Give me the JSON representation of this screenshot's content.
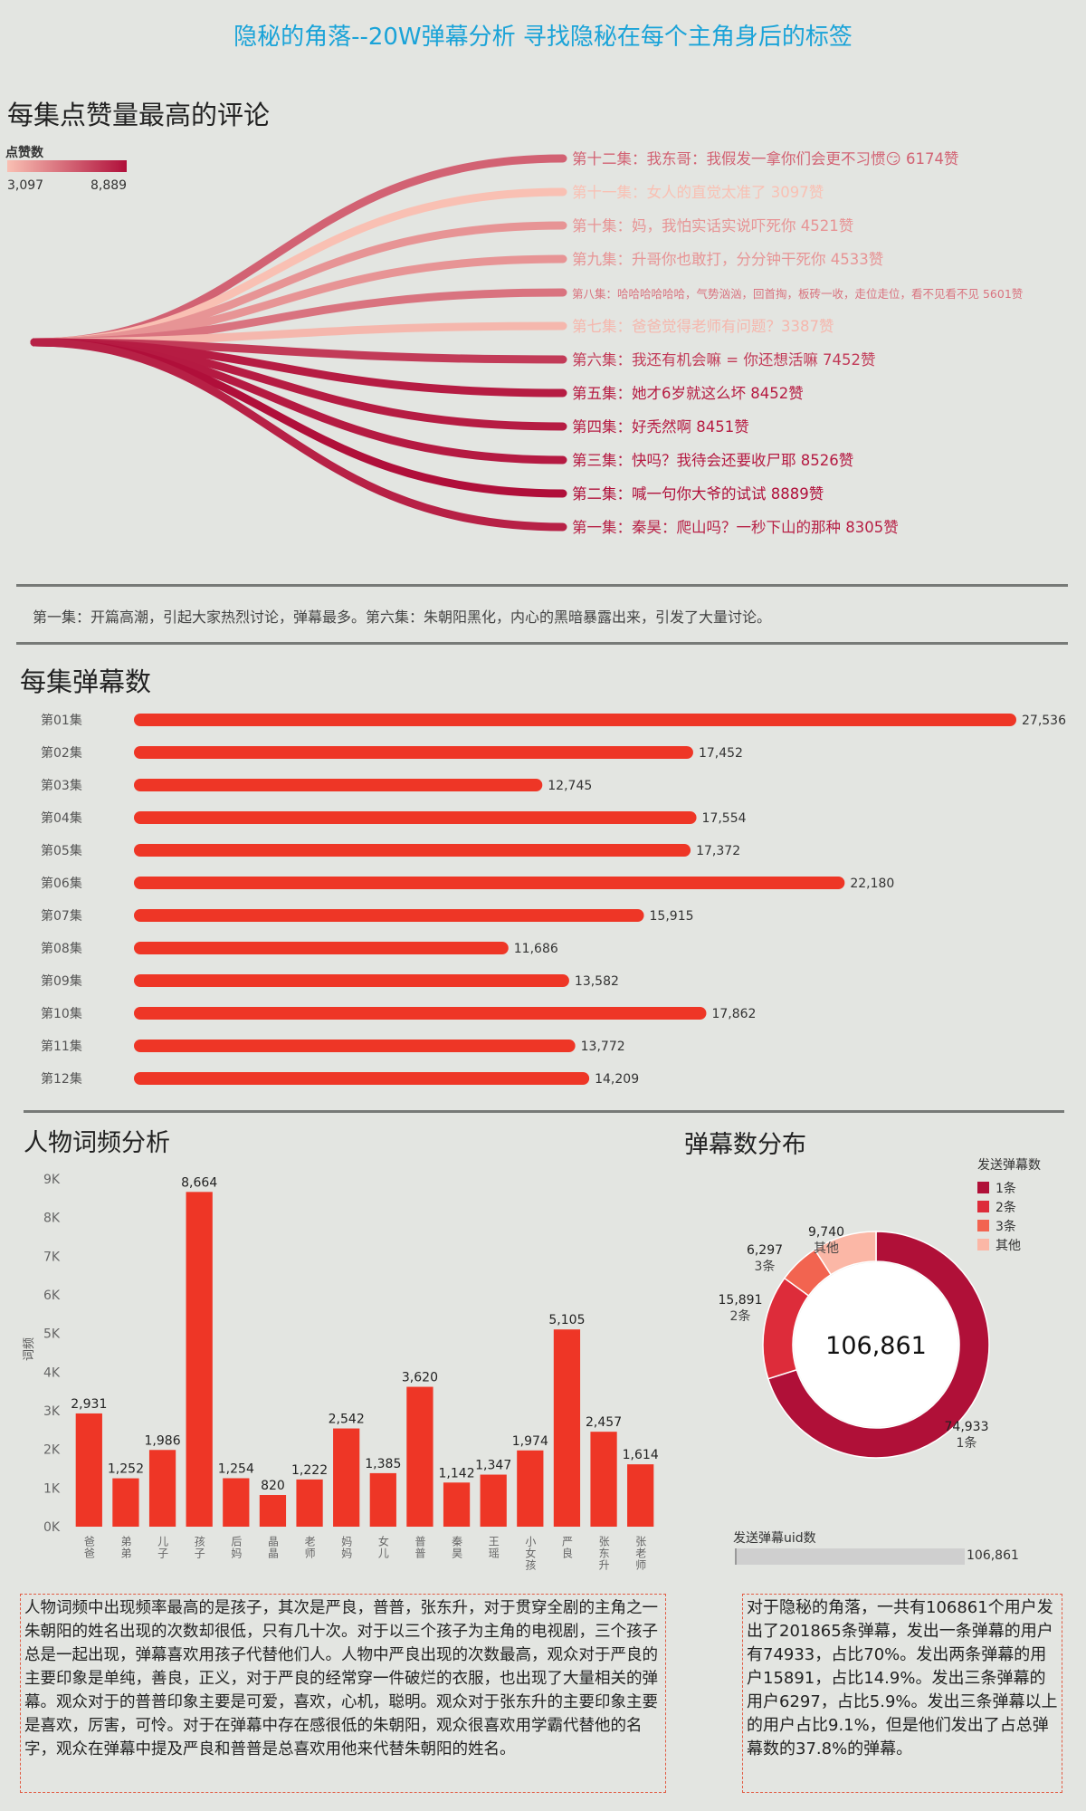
{
  "title": "隐秘的角落--20W弹幕分析 寻找隐秘在每个主角身后的标签",
  "sections": {
    "top_comments_title": "每集点赞量最高的评论",
    "danmu_per_episode_title": "每集弹幕数",
    "word_freq_title": "人物词频分析",
    "danmu_dist_title": "弹幕数分布"
  },
  "legend_likes": {
    "title": "点赞数",
    "min": "3,097",
    "max": "8,889"
  },
  "summary_text": "第一集：开篇高潮，引起大家热烈讨论，弹幕最多。第六集：朱朝阳黑化，内心的黑暗暴露出来，引发了大量讨论。",
  "word_freq_text": "人物词频中出现频率最高的是孩子，其次是严良，普普，张东升，对于贯穿全剧的主角之一朱朝阳的姓名出现的次数却很低，只有几十次。对于以三个孩子为主角的电视剧，三个孩子总是一起出现，弹幕喜欢用孩子代替他们人。人物中严良出现的次数最高，观众对于严良的主要印象是单纯，善良，正义，对于严良的经常穿一件破烂的衣服，也出现了大量相关的弹幕。观众对于的普普印象主要是可爱，喜欢，心机，聪明。观众对于张东升的主要印象主要是喜欢，厉害，可怜。对于在弹幕中存在感很低的朱朝阳，观众很喜欢用学霸代替他的名字，观众在弹幕中提及严良和普普是总喜欢用他来代替朱朝阳的姓名。",
  "dist_text": "对于隐秘的角落，一共有106861个用户发出了201865条弹幕，发出一条弹幕的用户有74933，占比70%。发出两条弹幕的用户15891，占比14.9%。发出三条弹幕的用户6297，占比5.9%。发出三条弹幕以上的用户占比9.1%，但是他们发出了占总弹幕数的37.8%的弹幕。",
  "uid_bar": {
    "label": "发送弹幕uid数",
    "value": "106,861",
    "fraction": 1.0
  },
  "chart_data": [
    {
      "type": "bar",
      "id": "top-comments",
      "title": "每集点赞量最高的评论",
      "legend_title": "点赞数",
      "value_range": [
        3097,
        8889
      ],
      "items": [
        {
          "label": "第十二集：我东哥：我假发一拿你们会更不习惯😏 6174赞",
          "likes": 6174
        },
        {
          "label": "第十一集：女人的直觉太准了 3097赞",
          "likes": 3097
        },
        {
          "label": "第十集：妈，我怕实话实说吓死你 4521赞",
          "likes": 4521
        },
        {
          "label": "第九集：升哥你也敢打，分分钟干死你 4533赞",
          "likes": 4533
        },
        {
          "label": "第八集：哈哈哈哈哈哈，气势汹汹，回首掏，板砖一收，走位走位，看不见看不见 5601赞",
          "likes": 5601,
          "small": true
        },
        {
          "label": "第七集：爸爸觉得老师有问题？3387赞",
          "likes": 3387
        },
        {
          "label": "第六集：我还有机会嘛 = 你还想活嘛 7452赞",
          "likes": 7452
        },
        {
          "label": "第五集：她才6岁就这么坏 8452赞",
          "likes": 8452
        },
        {
          "label": "第四集：好秃然啊  8451赞",
          "likes": 8451
        },
        {
          "label": "第三集：快吗？我待会还要收尸耶 8526赞",
          "likes": 8526
        },
        {
          "label": "第二集：喊一句你大爷的试试 8889赞",
          "likes": 8889
        },
        {
          "label": "第一集：秦昊：爬山吗？一秒下山的那种  8305赞",
          "likes": 8305
        }
      ]
    },
    {
      "type": "bar",
      "id": "danmu-per-episode",
      "title": "每集弹幕数",
      "categories": [
        "第01集",
        "第02集",
        "第03集",
        "第04集",
        "第05集",
        "第06集",
        "第07集",
        "第08集",
        "第09集",
        "第10集",
        "第11集",
        "第12集"
      ],
      "values": [
        27536,
        17452,
        12745,
        17554,
        17372,
        22180,
        15915,
        11686,
        13582,
        17862,
        13772,
        14209
      ],
      "value_labels": [
        "27,536",
        "17,452",
        "12,745",
        "17,554",
        "17,372",
        "22,180",
        "15,915",
        "11,686",
        "13,582",
        "17,862",
        "13,772",
        "14,209"
      ],
      "orientation": "horizontal",
      "color": "#ee3626"
    },
    {
      "type": "bar",
      "id": "word-freq",
      "title": "人物词频分析",
      "ylabel": "词频",
      "categories": [
        "爸爸",
        "弟弟",
        "儿子",
        "孩子",
        "后妈",
        "晶晶",
        "老师",
        "妈妈",
        "女儿",
        "普普",
        "秦昊",
        "王瑶",
        "小女孩",
        "严良",
        "张东升",
        "张老师"
      ],
      "values": [
        2931,
        1252,
        1986,
        8664,
        1254,
        820,
        1222,
        2542,
        1385,
        3620,
        1142,
        1347,
        1974,
        5105,
        2457,
        1614
      ],
      "value_labels": [
        "2,931",
        "1,252",
        "1,986",
        "8,664",
        "1,254",
        "820",
        "1,222",
        "2,542",
        "1,385",
        "3,620",
        "1,142",
        "1,347",
        "1,974",
        "5,105",
        "2,457",
        "1,614"
      ],
      "ylim": [
        0,
        9000
      ],
      "yticks": [
        "0K",
        "1K",
        "2K",
        "3K",
        "4K",
        "5K",
        "6K",
        "7K",
        "8K",
        "9K"
      ],
      "color": "#ee3626"
    },
    {
      "type": "pie",
      "id": "danmu-dist",
      "title": "弹幕数分布",
      "legend_title": "发送弹幕数",
      "center_label": "106,861",
      "slices": [
        {
          "name": "1条",
          "value": 74933,
          "value_label": "74,933",
          "color": "#b01038"
        },
        {
          "name": "2条",
          "value": 15891,
          "value_label": "15,891",
          "color": "#dd2c3a"
        },
        {
          "name": "3条",
          "value": 6297,
          "value_label": "6,297",
          "color": "#f26450"
        },
        {
          "name": "其他",
          "value": 9740,
          "value_label": "9,740",
          "color": "#fbb7a6"
        }
      ]
    }
  ]
}
